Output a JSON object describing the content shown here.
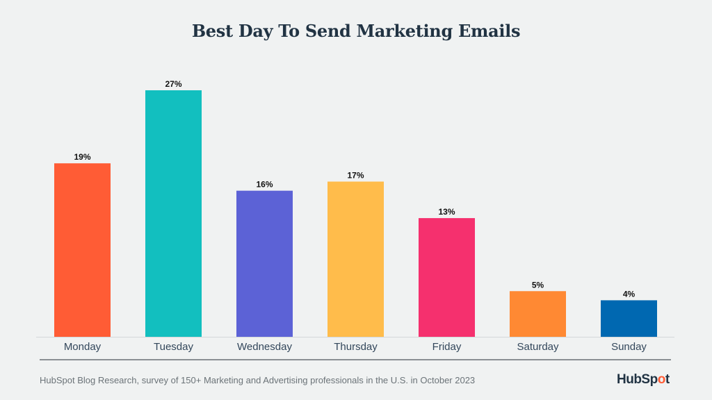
{
  "chart_data": {
    "type": "bar",
    "title": "Best Day To Send Marketing Emails",
    "categories": [
      "Monday",
      "Tuesday",
      "Wednesday",
      "Thursday",
      "Friday",
      "Saturday",
      "Sunday"
    ],
    "values": [
      19,
      27,
      16,
      17,
      13,
      5,
      4
    ],
    "data_labels": [
      "19%",
      "27%",
      "16%",
      "17%",
      "13%",
      "5%",
      "4%"
    ],
    "colors": [
      "#ff5c35",
      "#12bfbf",
      "#5c62d6",
      "#ffbc4b",
      "#f5306e",
      "#ff8933",
      "#0068b1"
    ],
    "xlabel": "",
    "ylabel": "",
    "ylim": [
      0,
      27
    ],
    "grid": false,
    "legend": "none"
  },
  "footer": {
    "source": "HubSpot Blog Research, survey of 150+ Marketing and Advertising professionals in the U.S. in October 2023",
    "logo": "HubSpot"
  }
}
